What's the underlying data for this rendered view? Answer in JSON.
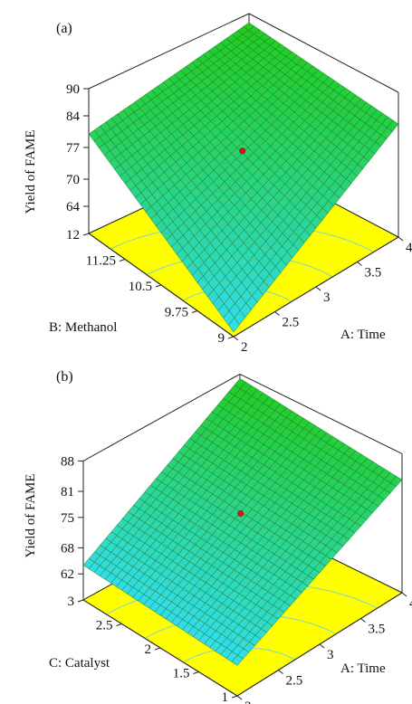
{
  "chart_data": [
    {
      "type": "surface",
      "panel_label": "(a)",
      "zlabel": "Yield of FAME",
      "xlabel": "A: Time",
      "ylabel": "B: Methanol",
      "z_ticks": [
        "64",
        "70",
        "77",
        "84",
        "90"
      ],
      "x_ticks": [
        "2",
        "2.5",
        "3",
        "3.5",
        "4"
      ],
      "y_ticks": [
        "9",
        "9.75",
        "10.5",
        "11.25",
        "12"
      ],
      "zlim": [
        58,
        90
      ],
      "xlim": [
        2,
        4
      ],
      "ylim": [
        9,
        12
      ],
      "surface_corners": [
        {
          "x": 2,
          "y": 9,
          "z": 59
        },
        {
          "x": 2,
          "y": 12,
          "z": 80
        },
        {
          "x": 4,
          "y": 12,
          "z": 88
        },
        {
          "x": 4,
          "y": 9,
          "z": 83
        }
      ],
      "center_point": {
        "x": 3,
        "y": 10.5,
        "z": 78
      },
      "colors": {
        "low": "#33ddee",
        "high": "#22cc22",
        "base": "#ffff00"
      }
    },
    {
      "type": "surface",
      "panel_label": "(b)",
      "zlabel": "Yield of FAME",
      "xlabel": "A: Time",
      "ylabel": "C: Catalyst",
      "z_ticks": [
        "62",
        "68",
        "75",
        "81",
        "88"
      ],
      "x_ticks": [
        "2",
        "2.5",
        "3",
        "3.5",
        "4"
      ],
      "y_ticks": [
        "1",
        "1.5",
        "2",
        "2.5",
        "3"
      ],
      "zlim": [
        56,
        88
      ],
      "xlim": [
        2,
        4
      ],
      "ylim": [
        1,
        3
      ],
      "surface_corners": [
        {
          "x": 2,
          "y": 1,
          "z": 63
        },
        {
          "x": 2,
          "y": 3,
          "z": 64
        },
        {
          "x": 4,
          "y": 3,
          "z": 87
        },
        {
          "x": 4,
          "y": 1,
          "z": 82
        }
      ],
      "center_point": {
        "x": 3,
        "y": 2,
        "z": 76
      },
      "colors": {
        "low": "#33ddee",
        "high": "#22cc22",
        "base": "#ffff00"
      }
    }
  ]
}
